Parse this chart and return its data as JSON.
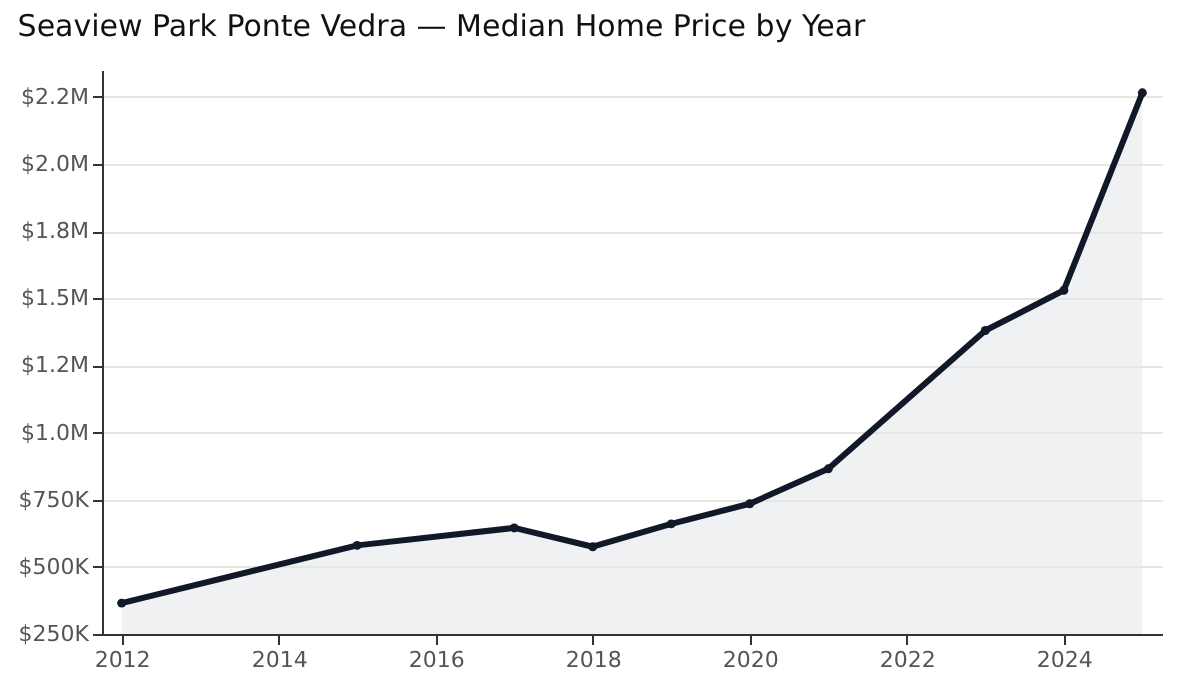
{
  "chart_data": {
    "type": "area",
    "title": "Seaview Park Ponte Vedra — Median Home Price by Year",
    "x": [
      2012,
      2015,
      2017,
      2018,
      2019,
      2020,
      2021,
      2023,
      2024,
      2025
    ],
    "series": [
      {
        "color": "#111827",
        "values": [
          365000,
          580000,
          645000,
          575000,
          660000,
          735000,
          865000,
          1380000,
          1530000,
          2265000
        ]
      }
    ],
    "xlim": [
      2011.75,
      2025.25
    ],
    "xticks": [
      2012,
      2014,
      2016,
      2018,
      2020,
      2022,
      2024
    ],
    "ylim": [
      250000,
      2350000
    ],
    "yticks": [
      {
        "value": 250000,
        "label": "$250K"
      },
      {
        "value": 500000,
        "label": "$500K"
      },
      {
        "value": 750000,
        "label": "$750K"
      },
      {
        "value": 1000000,
        "label": "$1.0M"
      },
      {
        "value": 1250000,
        "label": "$1.2M"
      },
      {
        "value": 1500000,
        "label": "$1.5M"
      },
      {
        "value": 1750000,
        "label": "$1.8M"
      },
      {
        "value": 2000000,
        "label": "$2.0M"
      },
      {
        "value": 2250000,
        "label": "$2.2M"
      }
    ],
    "grid": "y",
    "marker": "circle",
    "line_style": "solid"
  }
}
